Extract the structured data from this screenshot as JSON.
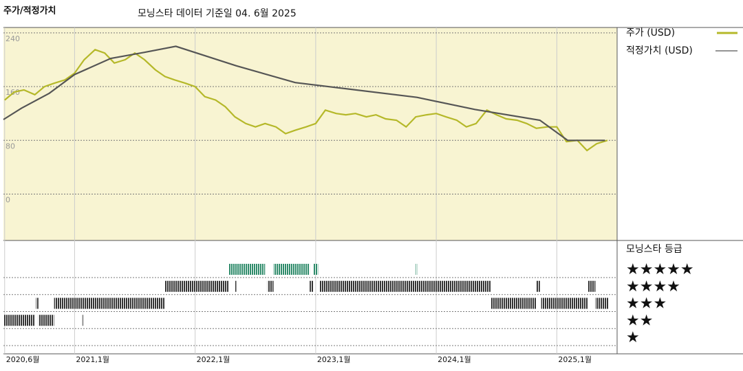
{
  "chart_data": [
    {
      "type": "line",
      "title": "주가/적정가치",
      "subtitle": "모닝스타 데이터 기준일 04. 6월 2025",
      "xlim": [
        2020.41,
        2025.5
      ],
      "xticks": [
        {
          "value": 2020.42,
          "label": "2020,6월"
        },
        {
          "value": 2021,
          "label": "2021,1월"
        },
        {
          "value": 2022,
          "label": "2022,1월"
        },
        {
          "value": 2023,
          "label": "2023,1월"
        },
        {
          "value": 2024,
          "label": "2024,1월"
        },
        {
          "value": 2025,
          "label": "2025,1월"
        }
      ],
      "ylim": [
        -69,
        248
      ],
      "yticks": [
        0,
        80,
        160,
        240
      ],
      "grid": true,
      "series": [
        {
          "name": "주가 (USD)",
          "color": "#b5b829",
          "x": [
            2020.42,
            2020.5,
            2020.58,
            2020.67,
            2020.75,
            2020.83,
            2020.92,
            2021.0,
            2021.08,
            2021.17,
            2021.25,
            2021.33,
            2021.42,
            2021.5,
            2021.58,
            2021.67,
            2021.75,
            2021.83,
            2021.92,
            2022.0,
            2022.08,
            2022.17,
            2022.25,
            2022.33,
            2022.42,
            2022.5,
            2022.58,
            2022.67,
            2022.75,
            2022.83,
            2022.92,
            2023.0,
            2023.08,
            2023.17,
            2023.25,
            2023.33,
            2023.42,
            2023.5,
            2023.58,
            2023.67,
            2023.75,
            2023.83,
            2023.92,
            2024.0,
            2024.08,
            2024.17,
            2024.25,
            2024.33,
            2024.42,
            2024.5,
            2024.58,
            2024.67,
            2024.75,
            2024.83,
            2024.92,
            2025.0,
            2025.08,
            2025.17,
            2025.25,
            2025.33,
            2025.42
          ],
          "values": [
            140,
            152,
            155,
            148,
            160,
            165,
            170,
            180,
            200,
            215,
            210,
            195,
            200,
            210,
            200,
            185,
            175,
            170,
            165,
            160,
            145,
            140,
            130,
            115,
            105,
            100,
            105,
            100,
            90,
            95,
            100,
            105,
            125,
            120,
            118,
            120,
            115,
            118,
            112,
            110,
            100,
            115,
            118,
            120,
            115,
            110,
            100,
            105,
            125,
            118,
            112,
            110,
            105,
            98,
            100,
            100,
            78,
            80,
            65,
            75,
            80
          ]
        },
        {
          "name": "적정가치 (USD)",
          "color": "#555555",
          "x": [
            2020.41,
            2020.56,
            2020.79,
            2021.0,
            2021.3,
            2021.58,
            2021.84,
            2022.34,
            2022.83,
            2023.84,
            2024.32,
            2024.86,
            2025.09,
            2025.4
          ],
          "values": [
            111,
            128,
            150,
            178,
            202,
            211,
            220,
            191,
            166,
            144,
            126,
            110,
            80,
            80
          ]
        }
      ]
    },
    {
      "type": "rating-bars",
      "title": "모닝스타 등급",
      "level_labels": [
        "★★★★★",
        "★★★★",
        "★★★",
        "★★",
        "★"
      ],
      "color": "#333333",
      "top_color": "#2e8b6a",
      "starts": [
        2022.28,
        2022.65,
        2022.98,
        2023.83,
        2021.75,
        2022.33,
        2022.6,
        2022.95,
        2023.03,
        2024.83,
        2025.26,
        2020.68,
        2020.83,
        2024.45,
        2024.87,
        2025.32,
        2020.41,
        2020.7,
        2021.06
      ],
      "ends": [
        2022.58,
        2022.95,
        2023.02,
        2023.84,
        2022.28,
        2022.34,
        2022.65,
        2022.98,
        2024.45,
        2024.86,
        2025.32,
        2020.7,
        2021.75,
        2024.83,
        2025.26,
        2025.43,
        2020.67,
        2020.83,
        2021.07
      ],
      "stars": [
        5,
        5,
        5,
        5,
        4,
        4,
        4,
        4,
        4,
        4,
        4,
        3,
        3,
        3,
        3,
        3,
        2,
        2,
        2
      ]
    }
  ]
}
